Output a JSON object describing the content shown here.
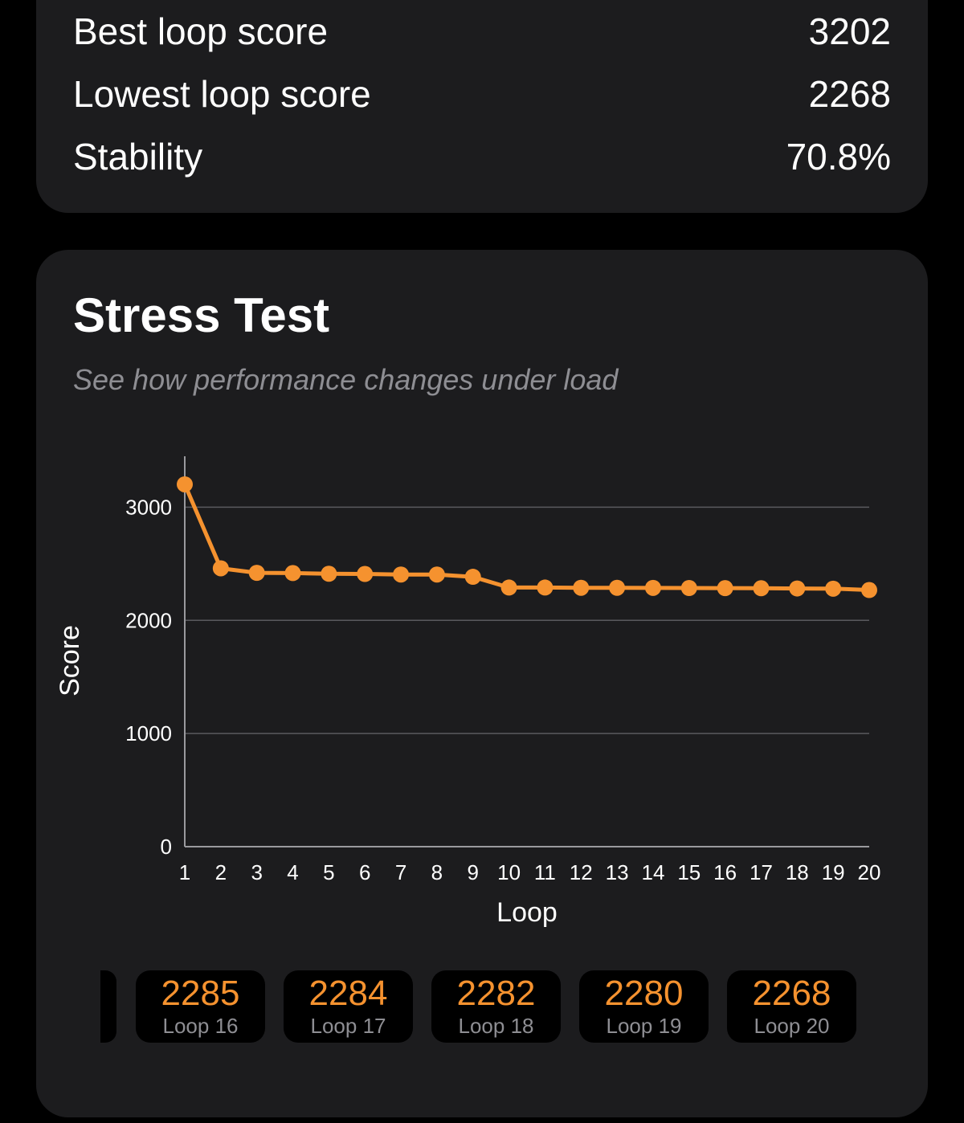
{
  "summary": {
    "rows": [
      {
        "label": "Best loop score",
        "value": "3202"
      },
      {
        "label": "Lowest loop score",
        "value": "2268"
      },
      {
        "label": "Stability",
        "value": "70.8%"
      }
    ]
  },
  "stress": {
    "title": "Stress Test",
    "subtitle": "See how performance changes under load",
    "chips": [
      {
        "score": "2285",
        "label": "Loop 16"
      },
      {
        "score": "2284",
        "label": "Loop 17"
      },
      {
        "score": "2282",
        "label": "Loop 18"
      },
      {
        "score": "2280",
        "label": "Loop 19"
      },
      {
        "score": "2268",
        "label": "Loop 20"
      }
    ]
  },
  "colors": {
    "accent": "#f5922f",
    "card": "#1c1c1e",
    "background": "#000000",
    "muted": "#8e8e93"
  },
  "chart_data": {
    "type": "line",
    "xlabel": "Loop",
    "ylabel": "Score",
    "x": [
      1,
      2,
      3,
      4,
      5,
      6,
      7,
      8,
      9,
      10,
      11,
      12,
      13,
      14,
      15,
      16,
      17,
      18,
      19,
      20
    ],
    "series": [
      {
        "values": [
          3202,
          2460,
          2420,
          2418,
          2412,
          2410,
          2405,
          2405,
          2385,
          2290,
          2290,
          2288,
          2288,
          2287,
          2286,
          2285,
          2284,
          2282,
          2280,
          2268
        ]
      }
    ],
    "yticks": [
      0,
      1000,
      2000,
      3000
    ],
    "xticks": [
      1,
      2,
      3,
      4,
      5,
      6,
      7,
      8,
      9,
      10,
      11,
      12,
      13,
      14,
      15,
      16,
      17,
      18,
      19,
      20
    ],
    "ylim": [
      0,
      3500
    ],
    "xlim": [
      1,
      20
    ],
    "grid": true,
    "legend": "none"
  }
}
